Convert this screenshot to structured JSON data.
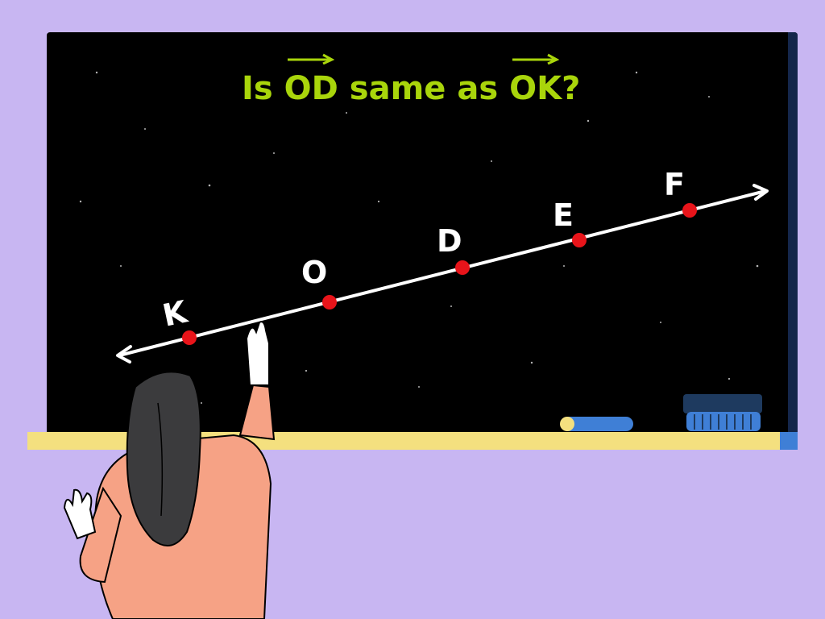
{
  "question": {
    "prefix": "Is",
    "vector1": "OD",
    "middle": "same as",
    "vector2": "OK",
    "suffix": "?"
  },
  "points": [
    {
      "label": "K"
    },
    {
      "label": "O"
    },
    {
      "label": "D"
    },
    {
      "label": "E"
    },
    {
      "label": "F"
    }
  ],
  "colors": {
    "background": "#c8b6f2",
    "board": "#000000",
    "title_text": "#a9d50b",
    "line": "#ffffff",
    "point": "#e8141a",
    "ledge": "#f4e07f",
    "chalk": "#3f7fd6",
    "eraser": "#1e3a5f"
  },
  "icons": {
    "chalk": "chalk-icon",
    "eraser": "eraser-icon",
    "teacher": "teacher-illustration"
  }
}
